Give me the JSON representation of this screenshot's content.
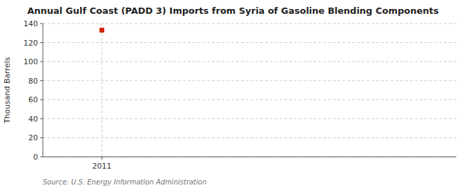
{
  "chart_data": {
    "type": "scatter",
    "title": "Annual Gulf Coast (PADD 3) Imports from Syria of Gasoline Blending Components",
    "ylabel": "Thousand Barrels",
    "annotations": [
      "Source: U.S. Energy Information Administration"
    ],
    "x": [
      2011
    ],
    "values": [
      133
    ],
    "color": "#cc2200",
    "marker": "square",
    "xlim": [
      2010.6,
      2013.4
    ],
    "xticks": [
      2011
    ],
    "ylim": [
      0,
      140
    ],
    "yticks": [
      0,
      20,
      40,
      60,
      80,
      100,
      120,
      140
    ],
    "grid": true
  }
}
